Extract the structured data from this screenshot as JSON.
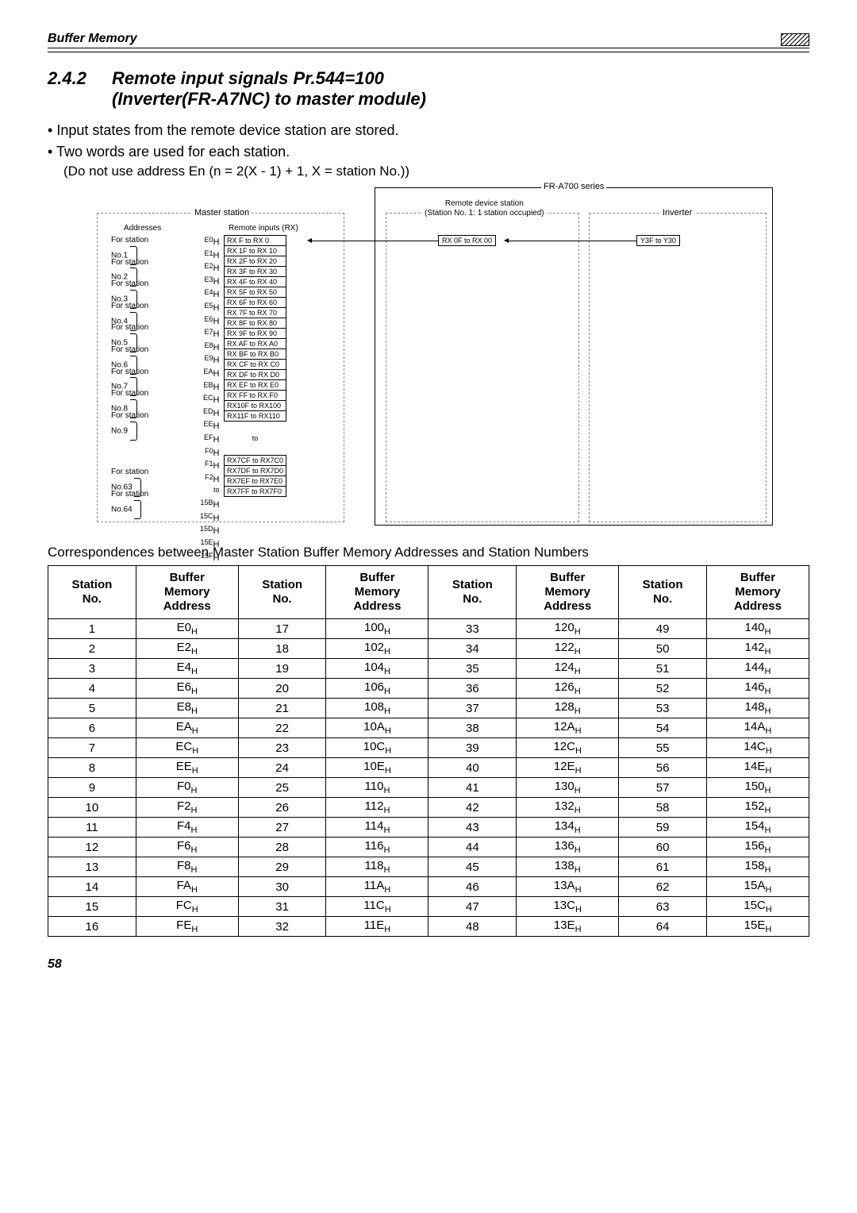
{
  "header": {
    "title": "Buffer Memory"
  },
  "section": {
    "number": "2.4.2",
    "title": "Remote input signals Pr.544=100\n(Inverter(FR-A7NC) to master module)"
  },
  "bullets": [
    "Input states from the remote device station are stored.",
    "Two words are used for each station."
  ],
  "formula": "(Do not use address En (n = 2(X - 1) + 1, X = station No.))",
  "diagram": {
    "fr_a700": "FR-A700 series",
    "master": "Master station",
    "remote_hdr1": "Remote device station",
    "remote_hdr2": "(Station No. 1: 1 station occupied)",
    "inverter": "Inverter",
    "addresses_label": "Addresses",
    "remote_inputs_label": "Remote inputs (RX)",
    "stations": [
      {
        "label": "For station\nNo.1",
        "addr1": "E0H",
        "row1": "RX  F to RX  0",
        "addr2": "E1H",
        "row2": "RX 1F to RX 10"
      },
      {
        "label": "For station\nNo.2",
        "addr1": "E2H",
        "row1": "RX 2F to RX 20",
        "addr2": "E3H",
        "row2": "RX 3F to RX 30"
      },
      {
        "label": "For station\nNo.3",
        "addr1": "E4H",
        "row1": "RX 4F to RX 40",
        "addr2": "E5H",
        "row2": "RX 5F to RX 50"
      },
      {
        "label": "For station\nNo.4",
        "addr1": "E6H",
        "row1": "RX 6F to RX 60",
        "addr2": "E7H",
        "row2": "RX 7F to RX 70"
      },
      {
        "label": "For station\nNo.5",
        "addr1": "E8H",
        "row1": "RX 8F to RX 80",
        "addr2": "E9H",
        "row2": "RX 9F to RX 90"
      },
      {
        "label": "For station\nNo.6",
        "addr1": "EAH",
        "row1": "RX AF to RX A0",
        "addr2": "EBH",
        "row2": "RX BF to RX B0"
      },
      {
        "label": "For station\nNo.7",
        "addr1": "ECH",
        "row1": "RX CF to RX C0",
        "addr2": "EDH",
        "row2": "RX DF to RX D0"
      },
      {
        "label": "For station\nNo.8",
        "addr1": "EEH",
        "row1": "RX EF to RX E0",
        "addr2": "EFH",
        "row2": "RX FF to RX F0"
      },
      {
        "label": "For station\nNo.9",
        "addr1": "F0H",
        "row1": "RX10F to RX100",
        "addr2": "F1H",
        "row2": "RX11F to RX110"
      }
    ],
    "gap_addr1": "F2H",
    "gap_to1": "to",
    "gap_to2": "to",
    "gap_addr2": "15BH",
    "tail": [
      {
        "label": "For station\nNo.63",
        "addr1": "15CH",
        "row1": "RX7CF to RX7C0",
        "addr2": "15DH",
        "row2": "RX7DF to RX7D0"
      },
      {
        "label": "For station\nNo.64",
        "addr1": "15EH",
        "row1": "RX7EF to RX7E0",
        "addr2": "15FH",
        "row2": "RX7FF to RX7F0"
      }
    ],
    "remote_cell": "RX 0F to RX 00",
    "inverter_cell": "Y3F  to Y30"
  },
  "caption": "Correspondences between Master Station Buffer Memory Addresses and Station Numbers",
  "corr_headers": [
    "Station\nNo.",
    "Buffer\nMemory\nAddress",
    "Station\nNo.",
    "Buffer\nMemory\nAddress",
    "Station\nNo.",
    "Buffer\nMemory\nAddress",
    "Station\nNo.",
    "Buffer\nMemory\nAddress"
  ],
  "corr_rows": [
    [
      "1",
      "E0H",
      "17",
      "100H",
      "33",
      "120H",
      "49",
      "140H"
    ],
    [
      "2",
      "E2H",
      "18",
      "102H",
      "34",
      "122H",
      "50",
      "142H"
    ],
    [
      "3",
      "E4H",
      "19",
      "104H",
      "35",
      "124H",
      "51",
      "144H"
    ],
    [
      "4",
      "E6H",
      "20",
      "106H",
      "36",
      "126H",
      "52",
      "146H"
    ],
    [
      "5",
      "E8H",
      "21",
      "108H",
      "37",
      "128H",
      "53",
      "148H"
    ],
    [
      "6",
      "EAH",
      "22",
      "10AH",
      "38",
      "12AH",
      "54",
      "14AH"
    ],
    [
      "7",
      "ECH",
      "23",
      "10CH",
      "39",
      "12CH",
      "55",
      "14CH"
    ],
    [
      "8",
      "EEH",
      "24",
      "10EH",
      "40",
      "12EH",
      "56",
      "14EH"
    ],
    [
      "9",
      "F0H",
      "25",
      "110H",
      "41",
      "130H",
      "57",
      "150H"
    ],
    [
      "10",
      "F2H",
      "26",
      "112H",
      "42",
      "132H",
      "58",
      "152H"
    ],
    [
      "11",
      "F4H",
      "27",
      "114H",
      "43",
      "134H",
      "59",
      "154H"
    ],
    [
      "12",
      "F6H",
      "28",
      "116H",
      "44",
      "136H",
      "60",
      "156H"
    ],
    [
      "13",
      "F8H",
      "29",
      "118H",
      "45",
      "138H",
      "61",
      "158H"
    ],
    [
      "14",
      "FAH",
      "30",
      "11AH",
      "46",
      "13AH",
      "62",
      "15AH"
    ],
    [
      "15",
      "FCH",
      "31",
      "11CH",
      "47",
      "13CH",
      "63",
      "15CH"
    ],
    [
      "16",
      "FEH",
      "32",
      "11EH",
      "48",
      "13EH",
      "64",
      "15EH"
    ]
  ],
  "page": "58"
}
